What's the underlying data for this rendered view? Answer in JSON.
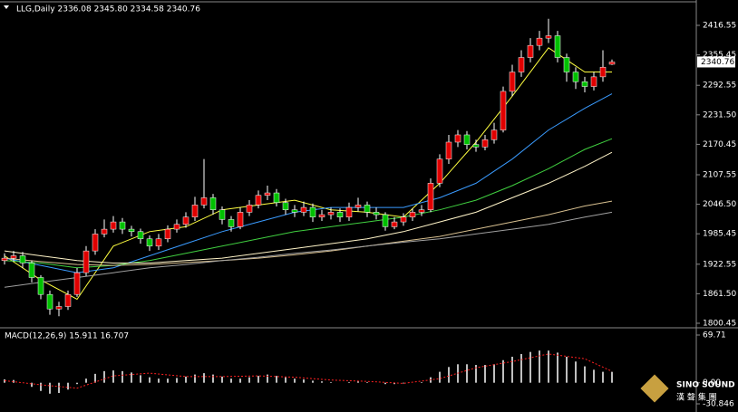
{
  "chart_data": [
    {
      "type": "candlestick",
      "title": "LLG,Daily  2336.08 2345.80 2334.58 2340.76",
      "open": [
        1930,
        1935,
        1940,
        1925,
        1895,
        1860,
        1830,
        1835,
        1860,
        1905,
        1950,
        1985,
        1995,
        2010,
        1995,
        1990,
        1975,
        1960,
        1975,
        1995,
        2005,
        2020,
        2045,
        2060,
        2035,
        2015,
        2000,
        2030,
        2045,
        2065,
        2070,
        2050,
        2035,
        2030,
        2040,
        2020,
        2025,
        2030,
        2020,
        2040,
        2045,
        2030,
        2025,
        2000,
        2010,
        2020,
        2030,
        2035,
        2090,
        2140,
        2175,
        2190,
        2170,
        2165,
        2180,
        2200,
        2280,
        2320,
        2350,
        2375,
        2390,
        2395,
        2350,
        2320,
        2300,
        2290,
        2310,
        2336.08
      ],
      "high": [
        1945,
        1950,
        1948,
        1930,
        1900,
        1868,
        1845,
        1868,
        1915,
        1960,
        1995,
        2015,
        2022,
        2018,
        2002,
        1996,
        1982,
        1985,
        2003,
        2015,
        2030,
        2062,
        2140,
        2068,
        2042,
        2022,
        2040,
        2055,
        2075,
        2085,
        2078,
        2058,
        2045,
        2052,
        2048,
        2035,
        2040,
        2038,
        2050,
        2060,
        2052,
        2040,
        2030,
        2020,
        2028,
        2038,
        2045,
        2100,
        2150,
        2190,
        2200,
        2198,
        2180,
        2190,
        2215,
        2290,
        2335,
        2365,
        2390,
        2405,
        2430,
        2405,
        2358,
        2330,
        2310,
        2320,
        2365,
        2345.8
      ],
      "low": [
        1922,
        1928,
        1915,
        1885,
        1850,
        1818,
        1815,
        1828,
        1855,
        1898,
        1942,
        1978,
        1988,
        1985,
        1980,
        1965,
        1950,
        1952,
        1968,
        1988,
        1998,
        2012,
        2038,
        2025,
        2005,
        1990,
        1995,
        2022,
        2038,
        2055,
        2042,
        2025,
        2020,
        2022,
        2010,
        2012,
        2015,
        2010,
        2012,
        2032,
        2020,
        2015,
        1992,
        1995,
        2002,
        2012,
        2022,
        2030,
        2082,
        2130,
        2165,
        2160,
        2155,
        2158,
        2172,
        2195,
        2270,
        2310,
        2340,
        2365,
        2380,
        2340,
        2300,
        2285,
        2278,
        2282,
        2300,
        2334.58
      ],
      "close": [
        1935,
        1940,
        1925,
        1895,
        1860,
        1830,
        1835,
        1860,
        1905,
        1950,
        1985,
        1995,
        2010,
        1995,
        1990,
        1975,
        1960,
        1975,
        1995,
        2005,
        2020,
        2045,
        2060,
        2035,
        2015,
        2000,
        2030,
        2045,
        2065,
        2070,
        2050,
        2035,
        2030,
        2040,
        2020,
        2025,
        2030,
        2020,
        2040,
        2045,
        2030,
        2025,
        2000,
        2010,
        2020,
        2030,
        2035,
        2090,
        2140,
        2175,
        2190,
        2170,
        2165,
        2180,
        2200,
        2280,
        2320,
        2350,
        2375,
        2390,
        2395,
        2350,
        2320,
        2300,
        2290,
        2310,
        2330,
        2340.76
      ],
      "up_color": "#e00000",
      "down_color": "#00c000",
      "line_x": [
        0,
        4,
        8,
        12,
        16,
        20,
        24,
        28,
        32,
        36,
        40,
        44,
        48,
        52,
        56,
        60,
        64,
        67
      ],
      "series": [
        {
          "color": "#ffff40",
          "values": [
            1940,
            1890,
            1850,
            1960,
            1990,
            2000,
            2035,
            2045,
            2055,
            2035,
            2030,
            2020,
            2090,
            2175,
            2270,
            2370,
            2320,
            2320
          ]
        },
        {
          "color": "#3a9bff",
          "values": [
            1935,
            1920,
            1905,
            1915,
            1940,
            1965,
            1990,
            2010,
            2030,
            2040,
            2040,
            2040,
            2060,
            2090,
            2140,
            2200,
            2245,
            2275
          ]
        },
        {
          "color": "#40d040",
          "values": [
            1930,
            1925,
            1915,
            1920,
            1930,
            1945,
            1960,
            1975,
            1990,
            2000,
            2010,
            2020,
            2035,
            2055,
            2085,
            2120,
            2160,
            2182
          ]
        },
        {
          "color": "#fff4c8",
          "values": [
            1950,
            1940,
            1930,
            1925,
            1925,
            1930,
            1935,
            1945,
            1955,
            1965,
            1975,
            1990,
            2010,
            2030,
            2060,
            2090,
            2125,
            2154
          ]
        },
        {
          "color": "#d8c090",
          "values": [
            1935,
            1928,
            1922,
            1920,
            1922,
            1926,
            1930,
            1935,
            1942,
            1950,
            1960,
            1970,
            1980,
            1995,
            2010,
            2025,
            2043,
            2053
          ]
        },
        {
          "color": "#a0a0a0",
          "values": [
            1875,
            1885,
            1895,
            1905,
            1915,
            1922,
            1930,
            1937,
            1945,
            1952,
            1960,
            1968,
            1975,
            1985,
            1995,
            2005,
            2020,
            2030
          ]
        }
      ],
      "ylim": [
        1794.8,
        2459.6
      ],
      "yticks": [
        2416.55,
        2355.45,
        2292.55,
        {
          "value": 2231.5,
          "label": "2231.50"
        },
        2170.45,
        2107.55,
        {
          "value": 2046.5,
          "label": "2046.50"
        },
        1985.45,
        1922.55,
        {
          "value": 1861.5,
          "label": "1861.50"
        },
        1800.45
      ],
      "last_price": 2340.76
    },
    {
      "type": "macd",
      "title": "MACD(12,26,9) 15.911 16.707",
      "values": [
        5,
        4,
        0,
        -6,
        -12,
        -16,
        -15,
        -10,
        -2,
        6,
        13,
        17,
        18,
        17,
        15,
        11,
        8,
        6,
        6,
        7,
        9,
        12,
        14,
        12,
        9,
        6,
        6,
        8,
        10,
        12,
        10,
        8,
        6,
        5,
        3,
        2,
        1,
        0,
        1,
        2,
        1,
        0,
        -2,
        -2,
        -1,
        0,
        1,
        8,
        16,
        23,
        27,
        27,
        26,
        26,
        27,
        33,
        38,
        42,
        45,
        47,
        47,
        44,
        38,
        31,
        24,
        19,
        16,
        15.911
      ],
      "color": "#ffffff",
      "line_x": [
        0,
        4,
        8,
        12,
        16,
        20,
        24,
        28,
        32,
        36,
        40,
        44,
        48,
        52,
        56,
        60,
        64,
        67
      ],
      "signal": {
        "color": "#ff2020",
        "values": [
          3,
          -3,
          -8,
          10,
          14,
          9,
          9,
          10,
          8,
          4,
          2,
          -1,
          6,
          22,
          31,
          42,
          35,
          16.707
        ]
      },
      "ylim": [
        -38.78,
        77.65
      ],
      "yticks": [
        69.71,
        {
          "value": 0,
          "label": "0.00"
        },
        -30.846
      ]
    }
  ],
  "watermark": [
    "SINO SOUND",
    "漢 聲 集 團"
  ]
}
